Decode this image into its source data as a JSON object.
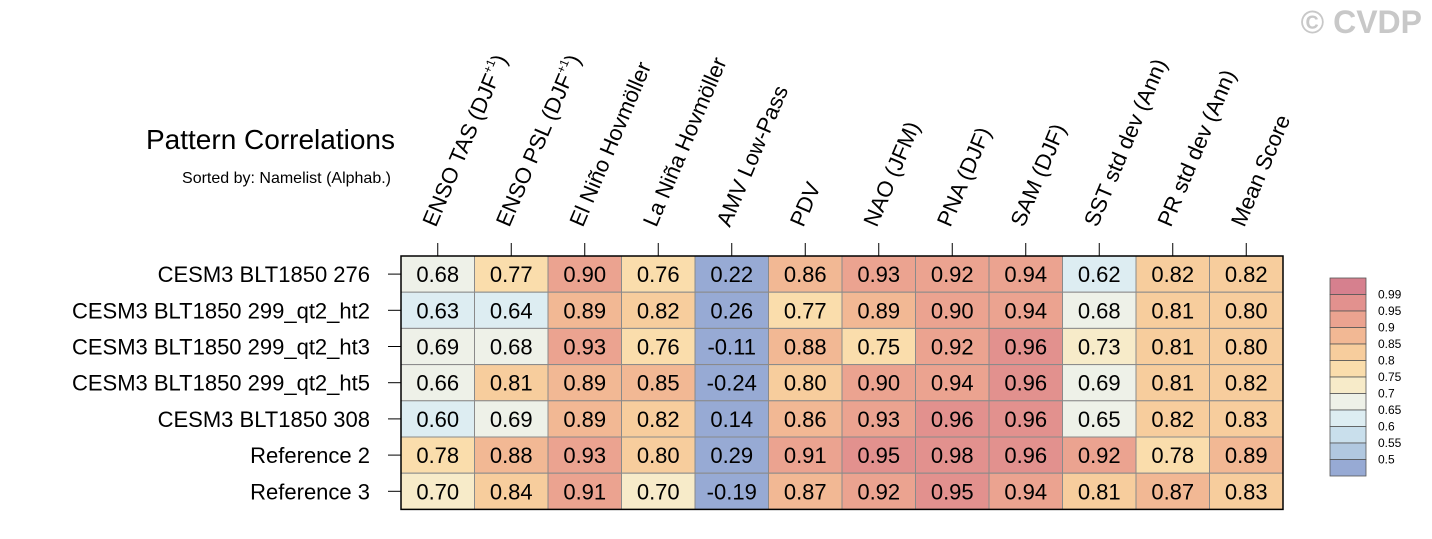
{
  "watermark": "© CVDP",
  "chart_data": {
    "type": "heatmap",
    "title": "Pattern Correlations",
    "subtitle": "Sorted by: Namelist (Alphab.)",
    "columns": [
      {
        "label": "ENSO TAS (DJF",
        "sup": "+1",
        "suffix": ")"
      },
      {
        "label": "ENSO PSL (DJF",
        "sup": "+1",
        "suffix": ")"
      },
      {
        "label": "El Niño Hovmöller"
      },
      {
        "label": "La Niña Hovmöller"
      },
      {
        "label": "AMV Low-Pass"
      },
      {
        "label": "PDV"
      },
      {
        "label": "NAO (JFM)"
      },
      {
        "label": "PNA (DJF)"
      },
      {
        "label": "SAM (DJF)"
      },
      {
        "label": "SST std dev (Ann)"
      },
      {
        "label": "PR std dev (Ann)"
      },
      {
        "label": "Mean Score"
      }
    ],
    "rows": [
      {
        "label": "CESM3 BLT1850 276",
        "values": [
          "0.68",
          "0.77",
          "0.90",
          "0.76",
          "0.22",
          "0.86",
          "0.93",
          "0.92",
          "0.94",
          "0.62",
          "0.82",
          "0.82"
        ]
      },
      {
        "label": "CESM3 BLT1850 299_qt2_ht2",
        "values": [
          "0.63",
          "0.64",
          "0.89",
          "0.82",
          "0.26",
          "0.77",
          "0.89",
          "0.90",
          "0.94",
          "0.68",
          "0.81",
          "0.80"
        ]
      },
      {
        "label": "CESM3 BLT1850 299_qt2_ht3",
        "values": [
          "0.69",
          "0.68",
          "0.93",
          "0.76",
          "-0.11",
          "0.88",
          "0.75",
          "0.92",
          "0.96",
          "0.73",
          "0.81",
          "0.80"
        ]
      },
      {
        "label": "CESM3 BLT1850 299_qt2_ht5",
        "values": [
          "0.66",
          "0.81",
          "0.89",
          "0.85",
          "-0.24",
          "0.80",
          "0.90",
          "0.94",
          "0.96",
          "0.69",
          "0.81",
          "0.82"
        ]
      },
      {
        "label": "CESM3 BLT1850 308",
        "values": [
          "0.60",
          "0.69",
          "0.89",
          "0.82",
          "0.14",
          "0.86",
          "0.93",
          "0.96",
          "0.96",
          "0.65",
          "0.82",
          "0.83"
        ]
      },
      {
        "label": "Reference 2",
        "values": [
          "0.78",
          "0.88",
          "0.93",
          "0.80",
          "0.29",
          "0.91",
          "0.95",
          "0.98",
          "0.96",
          "0.92",
          "0.78",
          "0.89"
        ]
      },
      {
        "label": "Reference 3",
        "values": [
          "0.70",
          "0.84",
          "0.91",
          "0.70",
          "-0.19",
          "0.87",
          "0.92",
          "0.95",
          "0.94",
          "0.81",
          "0.87",
          "0.83"
        ]
      }
    ],
    "colorbar": {
      "levels": [
        "0.99",
        "0.95",
        "0.9",
        "0.85",
        "0.8",
        "0.75",
        "0.7",
        "0.65",
        "0.6",
        "0.55",
        "0.5"
      ],
      "colors_top_to_bottom": [
        "#d6808e",
        "#e2918e",
        "#eba390",
        "#f2b894",
        "#f7cd9d",
        "#faddac",
        "#f7ebc9",
        "#eef1e8",
        "#ddedf2",
        "#c9dfec",
        "#b1c8e0",
        "#97aad4"
      ]
    }
  }
}
